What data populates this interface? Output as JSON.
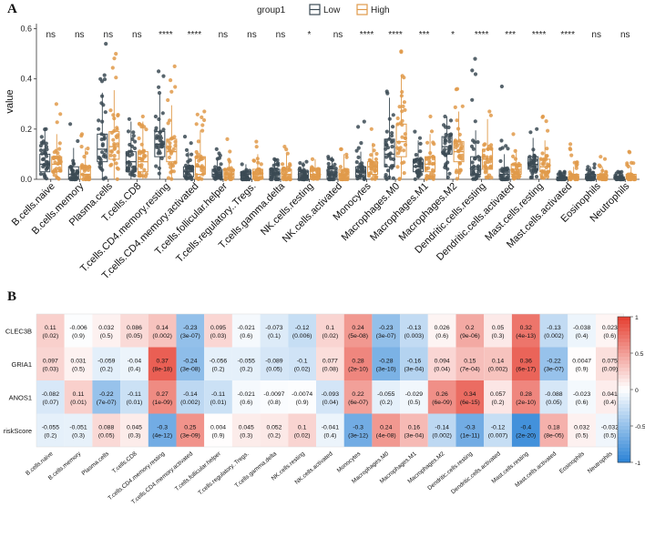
{
  "panel_a_letter": "A",
  "panel_b_letter": "B",
  "colors": {
    "low": "#3b4a54",
    "high": "#e09a4a",
    "neg": "#2b83d6",
    "pos": "#e53d2f"
  },
  "chart_data": [
    {
      "type": "box",
      "panel": "A",
      "legend": {
        "title": "group1",
        "entries": [
          "Low",
          "High"
        ],
        "placement": "top"
      },
      "ylabel": "value",
      "ylim": [
        0,
        0.6
      ],
      "yticks": [
        "0.0",
        "0.2",
        "0.4",
        "0.6"
      ],
      "yticks_values": [
        0,
        0.2,
        0.4,
        0.6
      ],
      "categories": [
        "B.cells.naive",
        "B.cells.memory",
        "Plasma.cells",
        "T.cells.CD8",
        "T.cells.CD4.memory.resting",
        "T.cells.CD4.memory.activated",
        "T.cells.follicular.helper",
        "T.cells.regulatory..Tregs.",
        "T.cells.gamma.delta",
        "NK.cells.resting",
        "NK.cells.activated",
        "Monocytes",
        "Macrophages.M0",
        "Macrophages.M1",
        "Macrophages.M2",
        "Dendritic.cells.resting",
        "Dendritic.cells.activated",
        "Mast.cells.resting",
        "Mast.cells.activated",
        "Eosinophils",
        "Neutrophils"
      ],
      "significance": [
        "ns",
        "ns",
        "ns",
        "ns",
        "****",
        "****",
        "ns",
        "ns",
        "ns",
        "*",
        "ns",
        "****",
        "****",
        "***",
        "*",
        "****",
        "***",
        "****",
        "****",
        "ns",
        "ns"
      ],
      "series": [
        {
          "name": "Low",
          "median": [
            0.06,
            0.02,
            0.12,
            0.07,
            0.14,
            0.03,
            0.02,
            0.02,
            0.02,
            0.01,
            0.02,
            0.03,
            0.1,
            0.05,
            0.13,
            0.05,
            0.02,
            0.06,
            0.0,
            0.01,
            0.0
          ],
          "q1": [
            0.03,
            0.0,
            0.07,
            0.03,
            0.09,
            0.01,
            0.01,
            0.0,
            0.0,
            0.0,
            0.0,
            0.01,
            0.05,
            0.03,
            0.1,
            0.02,
            0.0,
            0.04,
            0.0,
            0.0,
            0.0
          ],
          "q3": [
            0.1,
            0.05,
            0.18,
            0.11,
            0.19,
            0.05,
            0.04,
            0.03,
            0.04,
            0.03,
            0.04,
            0.05,
            0.16,
            0.08,
            0.17,
            0.09,
            0.04,
            0.09,
            0.01,
            0.02,
            0.01
          ],
          "max": [
            0.2,
            0.22,
            0.54,
            0.24,
            0.43,
            0.17,
            0.12,
            0.06,
            0.08,
            0.07,
            0.09,
            0.23,
            0.35,
            0.19,
            0.25,
            0.48,
            0.37,
            0.2,
            0.03,
            0.06,
            0.03
          ]
        },
        {
          "name": "High",
          "median": [
            0.06,
            0.02,
            0.13,
            0.07,
            0.11,
            0.05,
            0.02,
            0.02,
            0.02,
            0.02,
            0.02,
            0.05,
            0.15,
            0.06,
            0.11,
            0.08,
            0.04,
            0.05,
            0.01,
            0.01,
            0.01
          ],
          "q1": [
            0.03,
            0.0,
            0.08,
            0.03,
            0.07,
            0.02,
            0.01,
            0.0,
            0.0,
            0.01,
            0.0,
            0.02,
            0.09,
            0.03,
            0.07,
            0.04,
            0.02,
            0.03,
            0.0,
            0.0,
            0.0
          ],
          "q3": [
            0.09,
            0.05,
            0.19,
            0.11,
            0.16,
            0.09,
            0.04,
            0.04,
            0.04,
            0.04,
            0.04,
            0.07,
            0.22,
            0.09,
            0.15,
            0.12,
            0.06,
            0.08,
            0.02,
            0.02,
            0.02
          ],
          "max": [
            0.3,
            0.18,
            0.5,
            0.25,
            0.45,
            0.27,
            0.16,
            0.15,
            0.13,
            0.08,
            0.12,
            0.2,
            0.51,
            0.25,
            0.36,
            0.27,
            0.18,
            0.25,
            0.14,
            0.09,
            0.11
          ]
        }
      ]
    },
    {
      "type": "heatmap",
      "panel": "B",
      "rows": [
        "CLEC3B",
        "GRIA1",
        "ANOS1",
        "riskScore"
      ],
      "columns": [
        "B.cells.naive",
        "B.cells.memory",
        "Plasma.cells",
        "T.cells.CD8",
        "T.cells.CD4.memory.resting",
        "T.cells.CD4.memory.activated",
        "T.cells.follicular.helper",
        "T.cells.regulatory..Tregs.",
        "T.cells.gamma.delta",
        "NK.cells.resting",
        "NK.cells.activated",
        "Monocytes",
        "Macrophages.M0",
        "Macrophages.M1",
        "Macrophages.M2",
        "Dendritic.cells.resting",
        "Dendritic.cells.activated",
        "Mast.cells.resting",
        "Mast.cells.activated",
        "Eosinophils",
        "Neutrophils"
      ],
      "values": [
        [
          0.11,
          -0.006,
          0.032,
          0.086,
          0.14,
          -0.23,
          0.095,
          -0.021,
          -0.073,
          -0.12,
          0.1,
          0.24,
          -0.23,
          -0.13,
          0.026,
          0.2,
          0.05,
          0.32,
          -0.13,
          -0.038,
          0.023
        ],
        [
          0.097,
          0.031,
          -0.059,
          -0.04,
          0.37,
          -0.24,
          -0.056,
          -0.055,
          -0.089,
          -0.1,
          0.077,
          0.28,
          -0.28,
          -0.16,
          0.094,
          0.15,
          0.14,
          0.36,
          -0.22,
          0.0047,
          0.075
        ],
        [
          -0.082,
          0.11,
          -0.22,
          -0.11,
          0.27,
          -0.14,
          -0.11,
          -0.021,
          -0.0097,
          -0.0074,
          -0.093,
          0.22,
          -0.055,
          -0.029,
          0.26,
          0.34,
          0.057,
          0.28,
          -0.088,
          -0.023,
          0.041
        ],
        [
          -0.055,
          -0.051,
          0.088,
          0.045,
          -0.3,
          0.25,
          0.004,
          0.045,
          0.052,
          0.1,
          -0.041,
          -0.3,
          0.24,
          0.16,
          -0.14,
          -0.3,
          -0.12,
          -0.4,
          0.18,
          0.032,
          -0.032
        ]
      ],
      "labels": [
        [
          "0.11",
          "-0.006",
          "0.032",
          "0.086",
          "0.14",
          "-0.23",
          "0.095",
          "-0.021",
          "-0.073",
          "-0.12",
          "0.1",
          "0.24",
          "-0.23",
          "-0.13",
          "0.026",
          "0.2",
          "0.05",
          "0.32",
          "-0.13",
          "-0.038",
          "0.023"
        ],
        [
          "0.097",
          "0.031",
          "-0.059",
          "-0.04",
          "0.37",
          "-0.24",
          "-0.056",
          "-0.055",
          "-0.089",
          "-0.1",
          "0.077",
          "0.28",
          "-0.28",
          "-0.16",
          "0.094",
          "0.15",
          "0.14",
          "0.36",
          "-0.22",
          "0.0047",
          "0.075"
        ],
        [
          "-0.082",
          "0.11",
          "-0.22",
          "-0.11",
          "0.27",
          "-0.14",
          "-0.11",
          "-0.021",
          "-0.0097",
          "-0.0074",
          "-0.093",
          "0.22",
          "-0.055",
          "-0.029",
          "0.26",
          "0.34",
          "0.057",
          "0.28",
          "-0.088",
          "-0.023",
          "0.041"
        ],
        [
          "-0.055",
          "-0.051",
          "0.088",
          "0.045",
          "-0.3",
          "0.25",
          "0.004",
          "0.045",
          "0.052",
          "0.1",
          "-0.041",
          "-0.3",
          "0.24",
          "0.16",
          "-0.14",
          "-0.3",
          "-0.12",
          "-0.4",
          "0.18",
          "0.032",
          "-0.032"
        ]
      ],
      "pvalues": [
        [
          "(0.02)",
          "(0.9)",
          "(0.5)",
          "(0.05)",
          "(0.002)",
          "(3e-07)",
          "(0.03)",
          "(0.6)",
          "(0.1)",
          "(0.006)",
          "(0.02)",
          "(5e-08)",
          "(3e-07)",
          "(0.003)",
          "(0.6)",
          "(9e-06)",
          "(0.3)",
          "(4e-13)",
          "(0.002)",
          "(0.4)",
          "(0.6)"
        ],
        [
          "(0.03)",
          "(0.5)",
          "(0.2)",
          "(0.4)",
          "(8e-18)",
          "(3e-08)",
          "(0.2)",
          "(0.2)",
          "(0.05)",
          "(0.02)",
          "(0.08)",
          "(2e-10)",
          "(3e-10)",
          "(3e-04)",
          "(0.04)",
          "(7e-04)",
          "(0.002)",
          "(6e-17)",
          "(3e-07)",
          "(0.9)",
          "(0.09)"
        ],
        [
          "(0.07)",
          "(0.01)",
          "(7e-07)",
          "(0.01)",
          "(1e-09)",
          "(0.002)",
          "(0.01)",
          "(0.6)",
          "(0.8)",
          "(0.9)",
          "(0.04)",
          "(6e-07)",
          "(0.2)",
          "(0.5)",
          "(6e-09)",
          "(6e-15)",
          "(0.2)",
          "(2e-10)",
          "(0.05)",
          "(0.6)",
          "(0.4)"
        ],
        [
          "(0.2)",
          "(0.3)",
          "(0.05)",
          "(0.3)",
          "(4e-12)",
          "(3e-09)",
          "(0.9)",
          "(0.3)",
          "(0.2)",
          "(0.02)",
          "(0.4)",
          "(3e-12)",
          "(4e-08)",
          "(3e-04)",
          "(0.002)",
          "(1e-11)",
          "(0.007)",
          "(2e-20)",
          "(8e-05)",
          "(0.5)",
          "(0.5)"
        ]
      ],
      "colorbar": {
        "range": [
          -1,
          1
        ],
        "ticks": [
          "1",
          "0.5",
          "0",
          "-0.5",
          "-1"
        ],
        "tick_values": [
          1,
          0.5,
          0,
          -0.5,
          -1
        ]
      }
    }
  ]
}
